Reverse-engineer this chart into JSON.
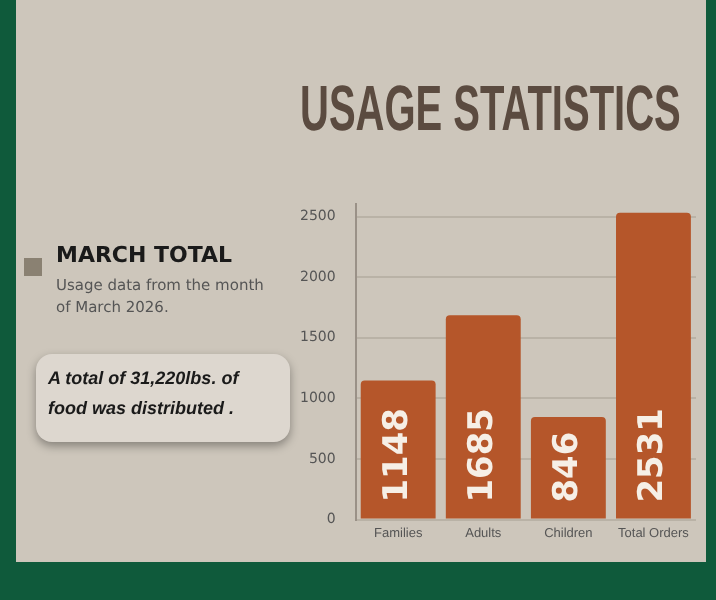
{
  "chart_data": {
    "type": "bar",
    "title": "USAGE STATISTICS",
    "annotations": [
      "MARCH TOTAL",
      "Usage data from the month of March 2026.",
      "A total of 31,220lbs. of food was distributed ."
    ],
    "categories": [
      "Families",
      "Adults",
      "Children",
      "Total Orders"
    ],
    "values": [
      1148,
      1685,
      846,
      2531
    ],
    "color": "#b5562a",
    "ylim": [
      0,
      2600
    ],
    "yticks": [
      0,
      500,
      1000,
      1500,
      2000,
      2500
    ],
    "grid": "y",
    "data_labels": true
  }
}
